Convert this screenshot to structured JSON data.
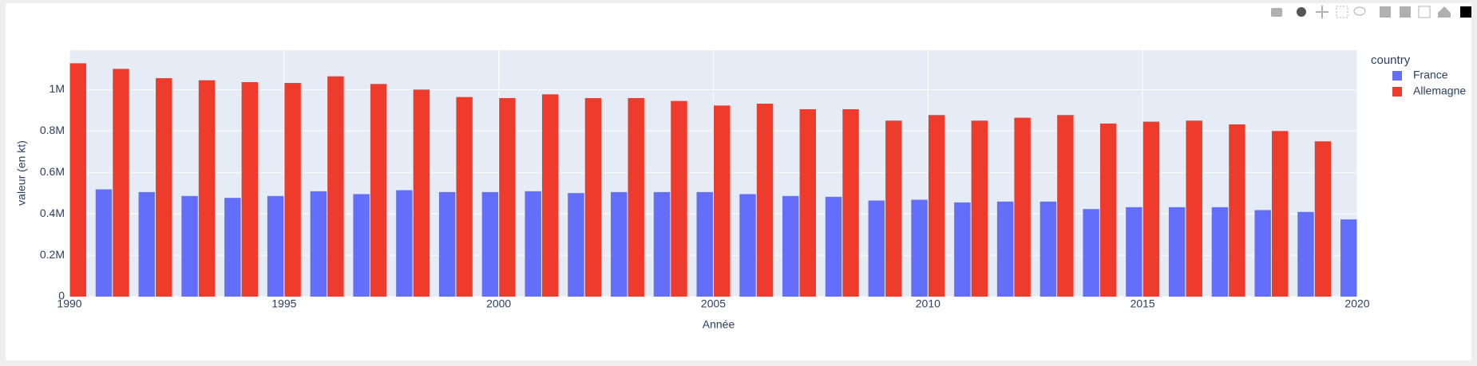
{
  "chart_data": {
    "type": "bar",
    "x_title": "Année",
    "y_title": "valeur (en kt)",
    "legend_title": "country",
    "x": [
      1990,
      1991,
      1992,
      1993,
      1994,
      1995,
      1996,
      1997,
      1998,
      1999,
      2000,
      2001,
      2002,
      2003,
      2004,
      2005,
      2006,
      2007,
      2008,
      2009,
      2010,
      2011,
      2012,
      2013,
      2014,
      2015,
      2016,
      2017,
      2018,
      2019,
      2020
    ],
    "series": [
      {
        "name": "France",
        "color": "#636efa",
        "values": [
          null,
          518000,
          505000,
          486000,
          477000,
          486000,
          509000,
          495000,
          514000,
          505000,
          505000,
          509000,
          500000,
          505000,
          505000,
          505000,
          495000,
          486000,
          482000,
          464000,
          468000,
          455000,
          459000,
          459000,
          423000,
          432000,
          432000,
          432000,
          418000,
          409000,
          373000
        ]
      },
      {
        "name": "Allemagne",
        "color": "#ef3b2c",
        "values": [
          1127000,
          1100000,
          1055000,
          1045000,
          1036000,
          1032000,
          1064000,
          1027000,
          1000000,
          964000,
          959000,
          977000,
          959000,
          959000,
          945000,
          923000,
          932000,
          905000,
          905000,
          850000,
          877000,
          850000,
          864000,
          877000,
          836000,
          845000,
          850000,
          832000,
          800000,
          750000,
          null
        ]
      }
    ],
    "xlim": [
      1990,
      2020
    ],
    "xticks": [
      1990,
      1995,
      2000,
      2005,
      2010,
      2015,
      2020
    ],
    "ylim": [
      0,
      1190000
    ],
    "yticks": [
      0,
      {
        "value": 200000,
        "label": "0.2M"
      },
      {
        "value": 400000,
        "label": "0.4M"
      },
      {
        "value": 600000,
        "label": "0.6M"
      },
      {
        "value": 800000,
        "label": "0.8M"
      },
      {
        "value": 1000000,
        "label": "1M"
      }
    ],
    "grid": true,
    "legend_position": "right"
  }
}
